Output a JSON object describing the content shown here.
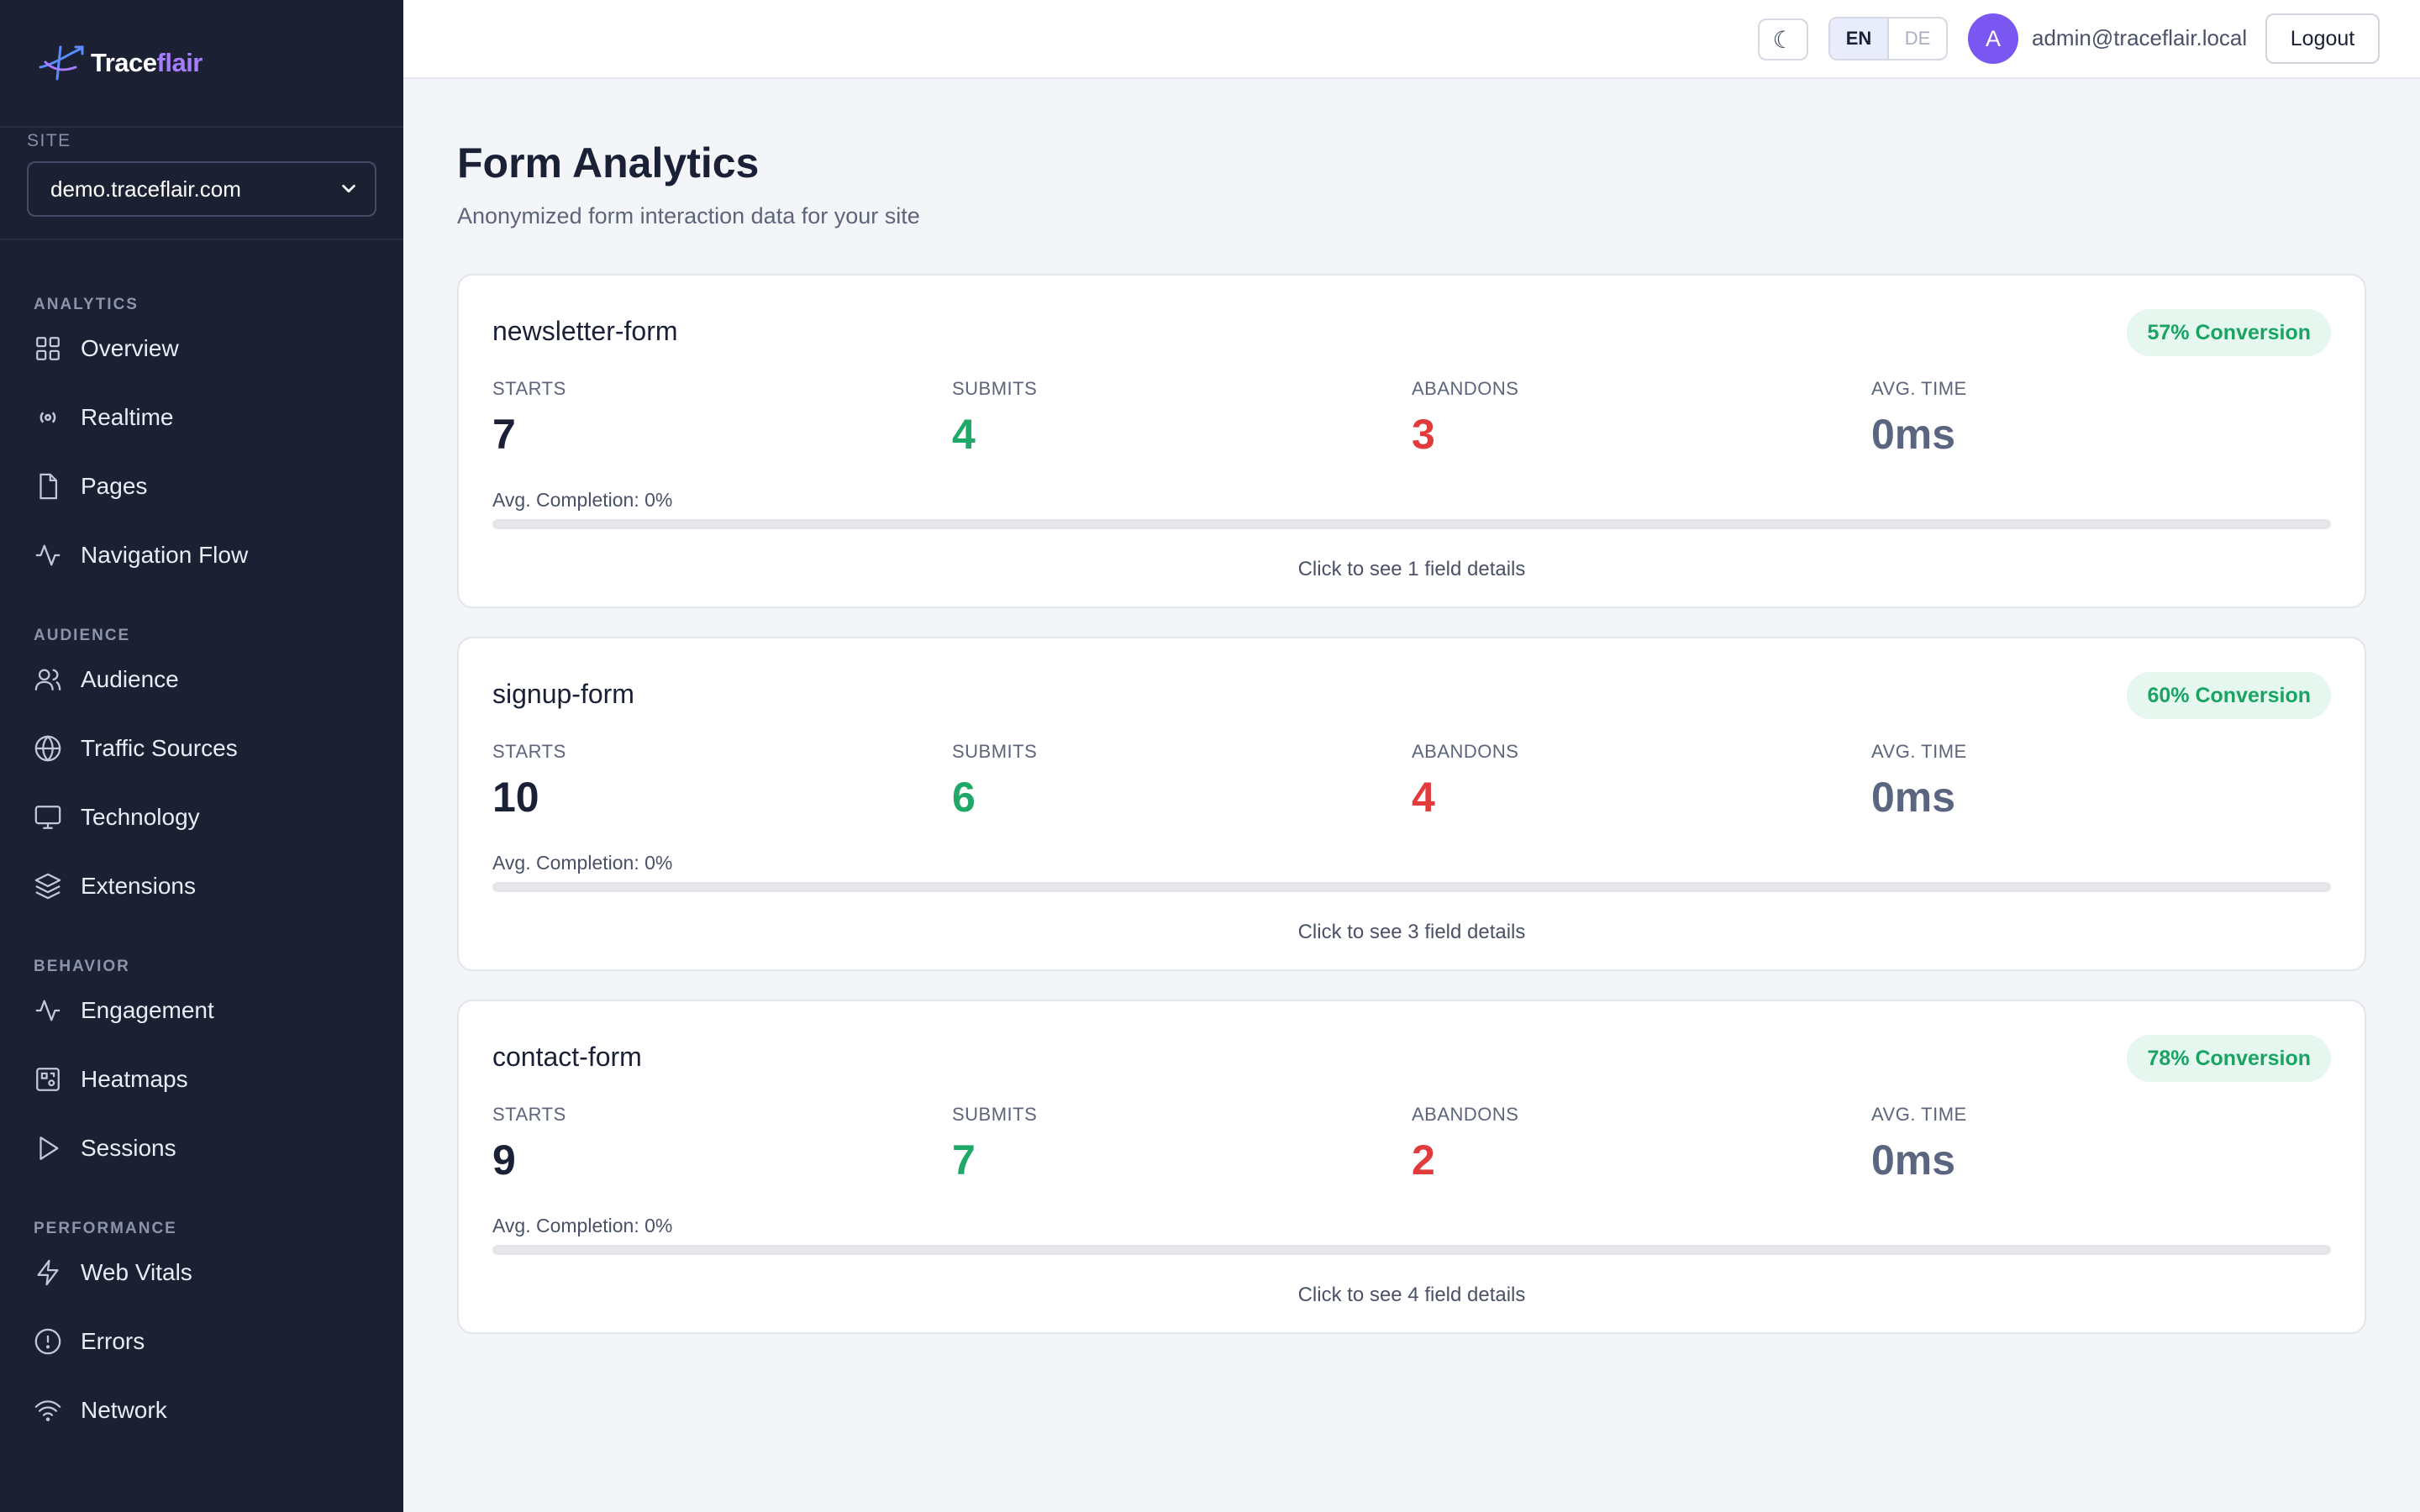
{
  "brand": {
    "name_part1": "Trace",
    "name_part2": "flair"
  },
  "site": {
    "label": "SITE",
    "selected": "demo.traceflair.com"
  },
  "nav": [
    {
      "heading": "ANALYTICS",
      "items": [
        {
          "label": "Overview",
          "icon": "grid-icon"
        },
        {
          "label": "Realtime",
          "icon": "broadcast-icon"
        },
        {
          "label": "Pages",
          "icon": "file-icon"
        },
        {
          "label": "Navigation Flow",
          "icon": "activity-icon"
        }
      ]
    },
    {
      "heading": "AUDIENCE",
      "items": [
        {
          "label": "Audience",
          "icon": "users-icon"
        },
        {
          "label": "Traffic Sources",
          "icon": "globe-icon"
        },
        {
          "label": "Technology",
          "icon": "monitor-icon"
        },
        {
          "label": "Extensions",
          "icon": "layers-icon"
        }
      ]
    },
    {
      "heading": "BEHAVIOR",
      "items": [
        {
          "label": "Engagement",
          "icon": "activity-icon"
        },
        {
          "label": "Heatmaps",
          "icon": "heatmap-icon"
        },
        {
          "label": "Sessions",
          "icon": "play-icon"
        }
      ]
    },
    {
      "heading": "PERFORMANCE",
      "items": [
        {
          "label": "Web Vitals",
          "icon": "zap-icon"
        },
        {
          "label": "Errors",
          "icon": "alert-circle-icon"
        },
        {
          "label": "Network",
          "icon": "wifi-icon"
        }
      ]
    }
  ],
  "header": {
    "theme_icon": "☾",
    "lang_active": "EN",
    "lang_inactive": "DE",
    "avatar_initial": "A",
    "user_email": "admin@traceflair.local",
    "logout_label": "Logout"
  },
  "page": {
    "title": "Form Analytics",
    "subtitle": "Anonymized form interaction data for your site"
  },
  "metric_labels": {
    "starts": "STARTS",
    "submits": "SUBMITS",
    "abandons": "ABANDONS",
    "avg_time": "AVG. TIME"
  },
  "forms": [
    {
      "name": "newsletter-form",
      "conversion": "57% Conversion",
      "starts": "7",
      "submits": "4",
      "abandons": "3",
      "avg_time": "0ms",
      "completion_label": "Avg. Completion: 0%",
      "completion_pct": 0,
      "details": "Click to see 1 field details"
    },
    {
      "name": "signup-form",
      "conversion": "60% Conversion",
      "starts": "10",
      "submits": "6",
      "abandons": "4",
      "avg_time": "0ms",
      "completion_label": "Avg. Completion: 0%",
      "completion_pct": 0,
      "details": "Click to see 3 field details"
    },
    {
      "name": "contact-form",
      "conversion": "78% Conversion",
      "starts": "9",
      "submits": "7",
      "abandons": "2",
      "avg_time": "0ms",
      "completion_label": "Avg. Completion: 0%",
      "completion_pct": 0,
      "details": "Click to see 4 field details"
    }
  ],
  "colors": {
    "sidebar_bg": "#1b2133",
    "accent": "#7b57f2",
    "success": "#1fa868",
    "danger": "#e23b3b"
  }
}
